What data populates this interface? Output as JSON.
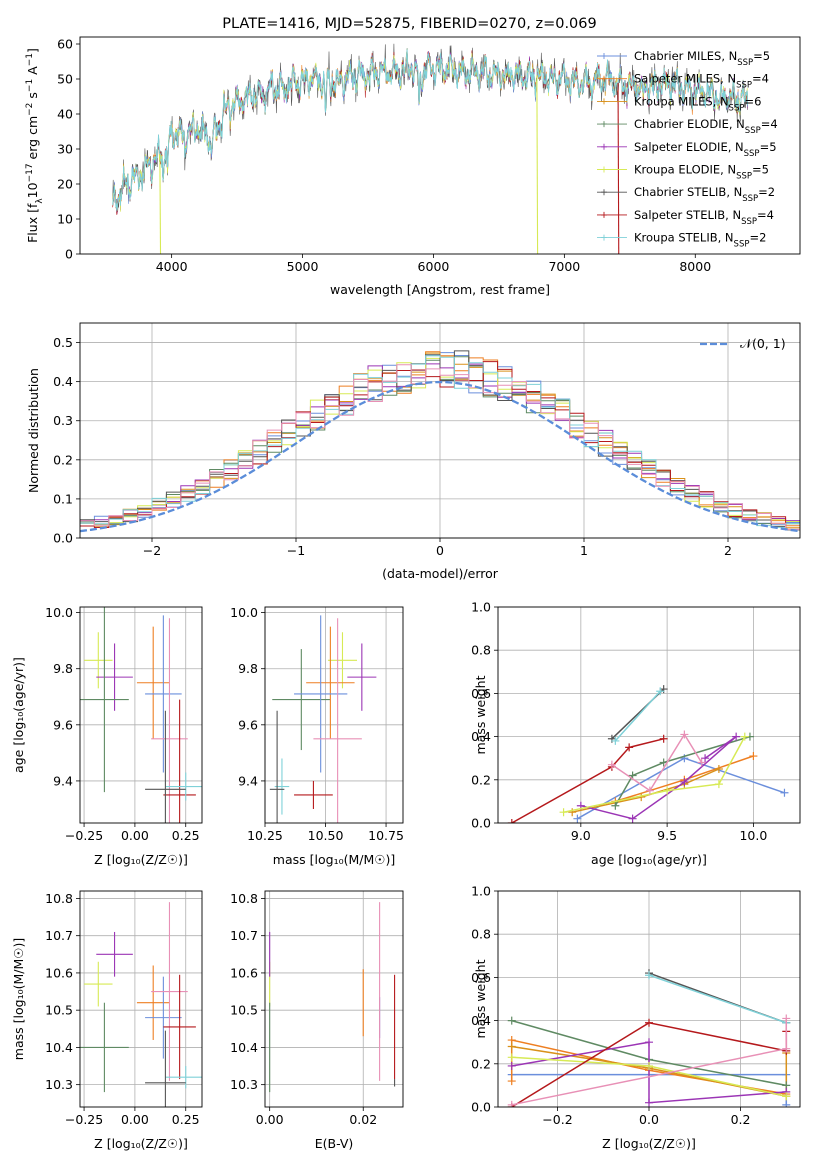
{
  "colors": {
    "chabrier_miles": "#6b8fdc",
    "salpeter_miles": "#ee7f22",
    "kroupa_miles": "#d9911a",
    "chabrier_elodie": "#5f8a63",
    "salpeter_elodie": "#9b35b5",
    "kroupa_elodie": "#d7ea55",
    "chabrier_stelib": "#555555",
    "salpeter_stelib": "#b5191c",
    "kroupa_stelib": "#7fd1d8",
    "pink": "#e890b6",
    "grid": "#b0b0b0",
    "gaussian": "#5b8dd9"
  },
  "chart_data": [
    {
      "id": "spectrum",
      "type": "line",
      "title": "PLATE=1416, MJD=52875, FIBERID=0270, z=0.069",
      "xlabel": "wavelength [Angstrom, rest frame]",
      "ylabel": "Flux [f_λ10^-17 erg cm^-2 s^-1 A^-1]",
      "xlim": [
        3300,
        8800
      ],
      "ylim": [
        0,
        62
      ],
      "xticks": [
        4000,
        5000,
        6000,
        7000,
        8000
      ],
      "yticks": [
        0,
        10,
        20,
        30,
        40,
        50,
        60
      ],
      "grid": false,
      "legend_position": "top-right",
      "legend": [
        {
          "label": "Chabrier MILES, N_SSP=5",
          "main": "Chabrier MILES, N",
          "sub": "SSP",
          "suffix": "=5",
          "color": "chabrier_miles",
          "marker": "+"
        },
        {
          "label": "Salpeter MILES, N_SSP=4",
          "main": "Salpeter MILES, N",
          "sub": "SSP",
          "suffix": "=4",
          "color": "salpeter_miles",
          "marker": "+"
        },
        {
          "label": "Kroupa MILES, N_SSP=6",
          "main": "Kroupa MILES, N",
          "sub": "SSP",
          "suffix": "=6",
          "color": "kroupa_miles",
          "marker": "+"
        },
        {
          "label": "Chabrier ELODIE, N_SSP=4",
          "main": "Chabrier ELODIE, N",
          "sub": "SSP",
          "suffix": "=4",
          "color": "chabrier_elodie",
          "marker": "+"
        },
        {
          "label": "Salpeter ELODIE, N_SSP=5",
          "main": "Salpeter ELODIE, N",
          "sub": "SSP",
          "suffix": "=5",
          "color": "salpeter_elodie",
          "marker": "+"
        },
        {
          "label": "Kroupa ELODIE, N_SSP=5",
          "main": "Kroupa ELODIE, N",
          "sub": "SSP",
          "suffix": "=5",
          "color": "kroupa_elodie",
          "marker": "+"
        },
        {
          "label": "Chabrier STELIB, N_SSP=2",
          "main": "Chabrier STELIB, N",
          "sub": "SSP",
          "suffix": "=2",
          "color": "chabrier_stelib",
          "marker": "+"
        },
        {
          "label": "Salpeter STELIB, N_SSP=4",
          "main": "Salpeter STELIB, N",
          "sub": "SSP",
          "suffix": "=4",
          "color": "salpeter_stelib",
          "marker": "+"
        },
        {
          "label": "Kroupa STELIB, N_SSP=2",
          "main": "Kroupa STELIB, N",
          "sub": "SSP",
          "suffix": "=2",
          "color": "kroupa_stelib",
          "marker": "+"
        }
      ],
      "continuum": [
        [
          3550,
          14
        ],
        [
          3650,
          20
        ],
        [
          3750,
          22
        ],
        [
          3850,
          26
        ],
        [
          3950,
          30
        ],
        [
          4000,
          35
        ],
        [
          4100,
          34
        ],
        [
          4200,
          36
        ],
        [
          4300,
          33
        ],
        [
          4400,
          41
        ],
        [
          4500,
          43
        ],
        [
          4600,
          45
        ],
        [
          4700,
          46
        ],
        [
          4800,
          48
        ],
        [
          4900,
          48
        ],
        [
          5000,
          50
        ],
        [
          5100,
          50
        ],
        [
          5200,
          49
        ],
        [
          5300,
          50
        ],
        [
          5400,
          51
        ],
        [
          5500,
          51
        ],
        [
          5600,
          52
        ],
        [
          5700,
          52
        ],
        [
          5800,
          53
        ],
        [
          5900,
          52
        ],
        [
          6000,
          53
        ],
        [
          6100,
          53
        ],
        [
          6200,
          52
        ],
        [
          6300,
          52
        ],
        [
          6400,
          52
        ],
        [
          6500,
          51
        ],
        [
          6600,
          51
        ],
        [
          6700,
          51
        ],
        [
          6800,
          51
        ],
        [
          6900,
          50
        ],
        [
          7000,
          50
        ],
        [
          7100,
          49
        ],
        [
          7200,
          49
        ],
        [
          7300,
          50
        ],
        [
          7400,
          49
        ],
        [
          7500,
          48
        ],
        [
          7600,
          48
        ],
        [
          7700,
          48
        ],
        [
          7800,
          49
        ],
        [
          7900,
          47
        ],
        [
          8000,
          47
        ],
        [
          8100,
          46
        ],
        [
          8200,
          45
        ],
        [
          8300,
          45
        ],
        [
          8400,
          44
        ]
      ],
      "absorption": [
        [
          3934,
          8
        ],
        [
          3969,
          12
        ],
        [
          4102,
          4
        ],
        [
          4227,
          3
        ],
        [
          4304,
          6
        ],
        [
          4341,
          4
        ],
        [
          4383,
          3
        ],
        [
          4861,
          5
        ],
        [
          5175,
          9
        ],
        [
          5270,
          3
        ],
        [
          5890,
          10
        ],
        [
          6563,
          3
        ],
        [
          7600,
          6
        ],
        [
          8190,
          3
        ]
      ],
      "spikes": [
        [
          3910,
          "kroupa_elodie"
        ],
        [
          6790,
          "kroupa_elodie"
        ],
        [
          7410,
          "salpeter_stelib"
        ]
      ]
    },
    {
      "id": "residuals",
      "type": "histogram",
      "xlabel": "(data-model)/error",
      "ylabel": "Normed distribution",
      "xlim": [
        -2.5,
        2.5
      ],
      "ylim": [
        0,
        0.55
      ],
      "xticks": [
        -2,
        -1,
        0,
        1,
        2
      ],
      "yticks": [
        0.0,
        0.1,
        0.2,
        0.3,
        0.4,
        0.5
      ],
      "grid": true,
      "legend_position": "top-right",
      "gaussian_label": "𝒩(0, 1)",
      "bin_width": 0.1,
      "bin_start": -2.5
    },
    {
      "id": "age_vs_Z",
      "type": "errorbar",
      "xlabel": "Z [log₁₀(Z/Z☉)]",
      "ylabel": "age  [log₁₀(age/yr)]",
      "xlim": [
        -0.27,
        0.33
      ],
      "ylim": [
        9.25,
        10.02
      ],
      "xticks": [
        -0.25,
        0.0,
        0.25
      ],
      "yticks": [
        9.4,
        9.6,
        9.8,
        10.0
      ],
      "grid": true,
      "points": [
        {
          "x": -0.18,
          "y": 9.83,
          "xerr": 0.07,
          "yerr": 0.1,
          "color": "kroupa_elodie"
        },
        {
          "x": -0.1,
          "y": 9.77,
          "xerr": 0.09,
          "yerr": 0.12,
          "color": "salpeter_elodie"
        },
        {
          "x": -0.15,
          "y": 9.69,
          "xerr": 0.12,
          "yerr": 0.33,
          "color": "chabrier_elodie"
        },
        {
          "x": 0.09,
          "y": 9.75,
          "xerr": 0.08,
          "yerr": 0.2,
          "color": "salpeter_miles"
        },
        {
          "x": 0.14,
          "y": 9.71,
          "xerr": 0.09,
          "yerr": 0.28,
          "color": "chabrier_miles"
        },
        {
          "x": 0.17,
          "y": 9.55,
          "xerr": 0.09,
          "yerr": 0.43,
          "color": "pink"
        },
        {
          "x": 0.22,
          "y": 9.35,
          "xerr": 0.08,
          "yerr": 0.34,
          "color": "salpeter_stelib"
        },
        {
          "x": 0.25,
          "y": 9.38,
          "xerr": 0.1,
          "yerr": 0.05,
          "color": "kroupa_stelib"
        },
        {
          "x": 0.15,
          "y": 9.37,
          "xerr": 0.1,
          "yerr": 0.28,
          "color": "chabrier_stelib"
        }
      ]
    },
    {
      "id": "age_vs_mass",
      "type": "errorbar",
      "xlabel": "mass [log₁₀(M/M☉)]",
      "ylabel": "",
      "xlim": [
        10.25,
        10.82
      ],
      "ylim": [
        9.25,
        10.02
      ],
      "xticks": [
        10.25,
        10.5,
        10.75
      ],
      "yticks": [
        9.4,
        9.6,
        9.8,
        10.0
      ],
      "grid": true,
      "points": [
        {
          "x": 10.57,
          "y": 9.83,
          "xerr": 0.06,
          "yerr": 0.1,
          "color": "kroupa_elodie"
        },
        {
          "x": 10.65,
          "y": 9.77,
          "xerr": 0.06,
          "yerr": 0.12,
          "color": "salpeter_elodie"
        },
        {
          "x": 10.4,
          "y": 9.69,
          "xerr": 0.12,
          "yerr": 0.18,
          "color": "chabrier_elodie"
        },
        {
          "x": 10.52,
          "y": 9.75,
          "xerr": 0.1,
          "yerr": 0.2,
          "color": "salpeter_miles"
        },
        {
          "x": 10.48,
          "y": 9.71,
          "xerr": 0.11,
          "yerr": 0.28,
          "color": "chabrier_miles"
        },
        {
          "x": 10.55,
          "y": 9.55,
          "xerr": 0.1,
          "yerr": 0.43,
          "color": "pink"
        },
        {
          "x": 10.45,
          "y": 9.35,
          "xerr": 0.08,
          "yerr": 0.05,
          "color": "salpeter_stelib"
        },
        {
          "x": 10.32,
          "y": 9.38,
          "xerr": 0.03,
          "yerr": 0.1,
          "color": "kroupa_stelib"
        },
        {
          "x": 10.3,
          "y": 9.37,
          "xerr": 0.03,
          "yerr": 0.28,
          "color": "chabrier_stelib"
        }
      ]
    },
    {
      "id": "weight_vs_age",
      "type": "line",
      "xlabel": "age  [log₁₀(age/yr)]",
      "ylabel": "mass weight",
      "xlim": [
        8.52,
        10.27
      ],
      "ylim": [
        0,
        1.0
      ],
      "xticks": [
        9.0,
        9.5,
        10.0
      ],
      "yticks": [
        0.0,
        0.2,
        0.4,
        0.6,
        0.8,
        1.0
      ],
      "grid": true,
      "series": [
        {
          "color": "chabrier_miles",
          "x": [
            8.98,
            9.6,
            10.18
          ],
          "y": [
            0.02,
            0.3,
            0.14
          ]
        },
        {
          "color": "salpeter_miles",
          "x": [
            9.2,
            9.6,
            10.0
          ],
          "y": [
            0.1,
            0.2,
            0.31
          ]
        },
        {
          "color": "kroupa_miles",
          "x": [
            8.95,
            9.35,
            9.6,
            9.8
          ],
          "y": [
            0.05,
            0.12,
            0.18,
            0.25
          ]
        },
        {
          "color": "chabrier_elodie",
          "x": [
            9.2,
            9.3,
            9.48,
            9.98
          ],
          "y": [
            0.08,
            0.22,
            0.28,
            0.4
          ]
        },
        {
          "color": "salpeter_elodie",
          "x": [
            9.0,
            9.3,
            9.6,
            9.9,
            9.72
          ],
          "y": [
            0.08,
            0.02,
            0.19,
            0.4,
            0.3
          ]
        },
        {
          "color": "kroupa_elodie",
          "x": [
            8.9,
            9.5,
            9.8,
            9.95
          ],
          "y": [
            0.05,
            0.15,
            0.18,
            0.4
          ]
        },
        {
          "color": "chabrier_stelib",
          "x": [
            9.18,
            9.48
          ],
          "y": [
            0.39,
            0.62
          ]
        },
        {
          "color": "salpeter_stelib",
          "x": [
            8.6,
            9.18,
            9.28,
            9.48
          ],
          "y": [
            0.0,
            0.26,
            0.35,
            0.39
          ]
        },
        {
          "color": "kroupa_stelib",
          "x": [
            9.2,
            9.46
          ],
          "y": [
            0.38,
            0.61
          ]
        },
        {
          "color": "pink",
          "x": [
            9.18,
            9.4,
            9.6,
            9.7
          ],
          "y": [
            0.27,
            0.15,
            0.41,
            0.28
          ]
        }
      ]
    },
    {
      "id": "mass_vs_Z",
      "type": "errorbar",
      "xlabel": "Z [log₁₀(Z/Z☉)]",
      "ylabel": "mass [log₁₀(M/M☉)]",
      "xlim": [
        -0.27,
        0.33
      ],
      "ylim": [
        10.24,
        10.82
      ],
      "xticks": [
        -0.25,
        0.0,
        0.25
      ],
      "yticks": [
        10.3,
        10.4,
        10.5,
        10.6,
        10.7,
        10.8
      ],
      "grid": true,
      "points": [
        {
          "x": -0.18,
          "y": 10.57,
          "xerr": 0.07,
          "yerr": 0.06,
          "color": "kroupa_elodie"
        },
        {
          "x": -0.1,
          "y": 10.65,
          "xerr": 0.09,
          "yerr": 0.06,
          "color": "salpeter_elodie"
        },
        {
          "x": -0.15,
          "y": 10.4,
          "xerr": 0.12,
          "yerr": 0.12,
          "color": "chabrier_elodie"
        },
        {
          "x": 0.09,
          "y": 10.52,
          "xerr": 0.08,
          "yerr": 0.1,
          "color": "salpeter_miles"
        },
        {
          "x": 0.14,
          "y": 10.48,
          "xerr": 0.09,
          "yerr": 0.11,
          "color": "chabrier_miles"
        },
        {
          "x": 0.17,
          "y": 10.55,
          "xerr": 0.09,
          "yerr": 0.24,
          "color": "pink"
        },
        {
          "x": 0.22,
          "y": 10.455,
          "xerr": 0.08,
          "yerr": 0.14,
          "color": "salpeter_stelib"
        },
        {
          "x": 0.25,
          "y": 10.32,
          "xerr": 0.1,
          "yerr": 0.03,
          "color": "kroupa_stelib"
        },
        {
          "x": 0.15,
          "y": 10.305,
          "xerr": 0.1,
          "yerr": 0.14,
          "color": "chabrier_stelib"
        }
      ]
    },
    {
      "id": "mass_vs_ebv",
      "type": "errorbar",
      "xlabel": "E(B-V)",
      "ylabel": "",
      "xlim": [
        -0.001,
        0.0285
      ],
      "ylim": [
        10.24,
        10.82
      ],
      "xticks": [
        0.0,
        0.02
      ],
      "yticks": [
        10.3,
        10.4,
        10.5,
        10.6,
        10.7,
        10.8
      ],
      "grid": true,
      "points": [
        {
          "x": 0.0,
          "y": 10.57,
          "xerr": 0.0,
          "yerr": 0.06,
          "color": "kroupa_elodie"
        },
        {
          "x": 0.0,
          "y": 10.65,
          "xerr": 0.0,
          "yerr": 0.06,
          "color": "salpeter_elodie"
        },
        {
          "x": 0.0,
          "y": 10.4,
          "xerr": 0.0,
          "yerr": 0.12,
          "color": "chabrier_elodie"
        },
        {
          "x": 0.02,
          "y": 10.52,
          "xerr": 0.0,
          "yerr": 0.09,
          "color": "salpeter_miles"
        },
        {
          "x": 0.0235,
          "y": 10.48,
          "xerr": 0.0,
          "yerr": 0.055,
          "color": "chabrier_miles"
        },
        {
          "x": 0.0235,
          "y": 10.55,
          "xerr": 0.0,
          "yerr": 0.24,
          "color": "pink"
        },
        {
          "x": 0.0267,
          "y": 10.455,
          "xerr": 0.0,
          "yerr": 0.14,
          "color": "salpeter_stelib"
        },
        {
          "x": 0.0235,
          "y": 10.32,
          "xerr": 0.0,
          "yerr": 0.0,
          "color": "kroupa_stelib"
        },
        {
          "x": 0.0267,
          "y": 10.305,
          "xerr": 0.0,
          "yerr": 0.01,
          "color": "chabrier_stelib"
        }
      ]
    },
    {
      "id": "weight_vs_Z",
      "type": "line",
      "xlabel": "Z [log₁₀(Z/Z☉)]",
      "ylabel": "mass weight",
      "xlim": [
        -0.33,
        0.33
      ],
      "ylim": [
        0,
        1.0
      ],
      "xticks": [
        -0.2,
        0.0,
        0.2
      ],
      "yticks": [
        0.0,
        0.2,
        0.4,
        0.6,
        0.8,
        1.0
      ],
      "grid": true,
      "series": [
        {
          "color": "chabrier_miles",
          "x": [
            -0.3,
            0.3,
            0.3
          ],
          "y": [
            0.15,
            0.15,
            0.01
          ]
        },
        {
          "color": "salpeter_miles",
          "x": [
            -0.3,
            -0.3,
            0.0,
            0.3
          ],
          "y": [
            0.12,
            0.31,
            0.17,
            0.06
          ]
        },
        {
          "color": "kroupa_miles",
          "x": [
            -0.3,
            0.0,
            0.3,
            0.3
          ],
          "y": [
            0.28,
            0.18,
            0.05,
            0.25
          ]
        },
        {
          "color": "chabrier_elodie",
          "x": [
            -0.3,
            0.0,
            0.3
          ],
          "y": [
            0.4,
            0.22,
            0.1
          ]
        },
        {
          "color": "salpeter_elodie",
          "x": [
            -0.3,
            0.0,
            0.0,
            0.3
          ],
          "y": [
            0.19,
            0.3,
            0.02,
            0.07
          ]
        },
        {
          "color": "kroupa_elodie",
          "x": [
            -0.3,
            0.0,
            0.3
          ],
          "y": [
            0.23,
            0.19,
            0.05
          ]
        },
        {
          "color": "chabrier_stelib",
          "x": [
            0.0,
            0.3
          ],
          "y": [
            0.62,
            0.39
          ]
        },
        {
          "color": "salpeter_stelib",
          "x": [
            -0.3,
            0.0,
            0.3,
            0.3
          ],
          "y": [
            0.0,
            0.39,
            0.26,
            0.35
          ]
        },
        {
          "color": "kroupa_stelib",
          "x": [
            0.0,
            0.3
          ],
          "y": [
            0.61,
            0.39
          ]
        },
        {
          "color": "pink",
          "x": [
            -0.3,
            0.3,
            0.3
          ],
          "y": [
            0.01,
            0.27,
            0.41
          ]
        }
      ]
    }
  ]
}
